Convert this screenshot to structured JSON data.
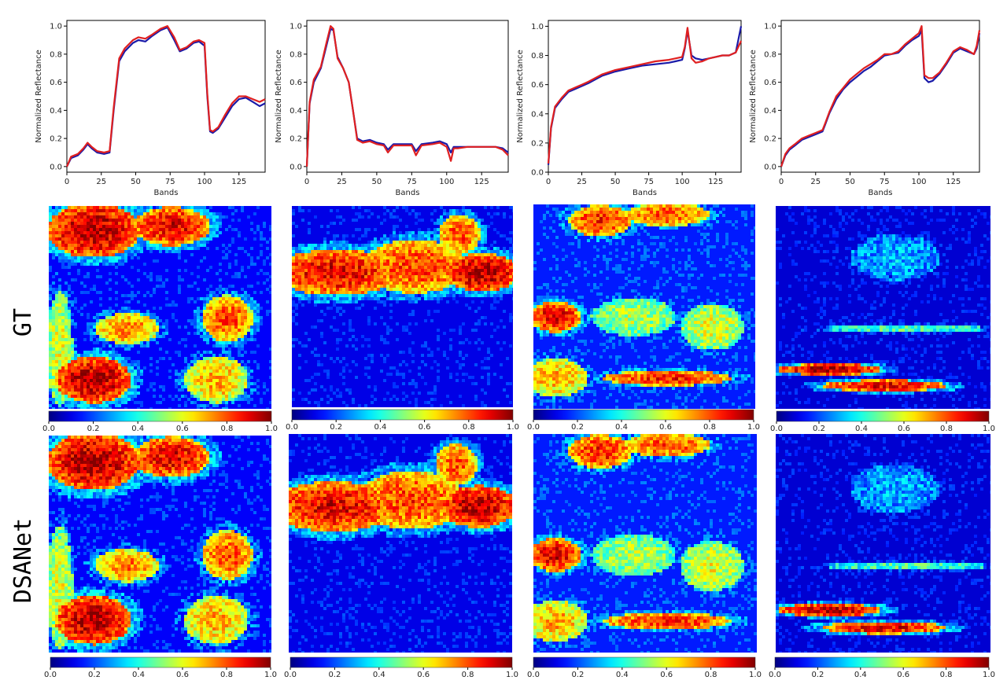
{
  "rows": [
    {
      "label": "GT"
    },
    {
      "label": "DSANet"
    }
  ],
  "colorbar": {
    "ticks": [
      "0.0",
      "0.2",
      "0.4",
      "0.6",
      "0.8",
      "1.0"
    ],
    "colormap": "jet",
    "range": [
      0,
      1
    ]
  },
  "colors": {
    "series_a": "#1a1aa8",
    "series_b": "#e02020"
  },
  "chart_data": [
    {
      "type": "line",
      "xlabel": "Bands",
      "ylabel": "Normalized Reflectance",
      "xlim": [
        0,
        144
      ],
      "ylim": [
        -0.04,
        1.04
      ],
      "xticks": [
        0,
        25,
        50,
        75,
        100,
        125
      ],
      "yticks": [
        0.0,
        0.2,
        0.4,
        0.6,
        0.8,
        1.0
      ],
      "series": [
        {
          "color": "#1a1aa8",
          "x": [
            0,
            3,
            8,
            12,
            15,
            18,
            22,
            27,
            31,
            34,
            38,
            42,
            48,
            52,
            57,
            62,
            68,
            73,
            78,
            82,
            87,
            92,
            96,
            100,
            102,
            104,
            106,
            110,
            115,
            120,
            125,
            130,
            135,
            140,
            144
          ],
          "y": [
            0.0,
            0.06,
            0.08,
            0.12,
            0.16,
            0.13,
            0.1,
            0.09,
            0.1,
            0.4,
            0.75,
            0.82,
            0.88,
            0.9,
            0.89,
            0.93,
            0.97,
            0.99,
            0.9,
            0.82,
            0.84,
            0.88,
            0.89,
            0.86,
            0.5,
            0.25,
            0.24,
            0.27,
            0.35,
            0.43,
            0.48,
            0.49,
            0.46,
            0.43,
            0.45
          ]
        },
        {
          "color": "#e02020",
          "x": [
            0,
            3,
            8,
            12,
            15,
            18,
            22,
            27,
            31,
            34,
            38,
            42,
            48,
            52,
            57,
            62,
            68,
            73,
            78,
            82,
            87,
            92,
            96,
            100,
            102,
            104,
            106,
            110,
            115,
            120,
            125,
            130,
            135,
            140,
            144
          ],
          "y": [
            0.0,
            0.07,
            0.09,
            0.13,
            0.17,
            0.14,
            0.11,
            0.1,
            0.11,
            0.42,
            0.77,
            0.84,
            0.9,
            0.92,
            0.91,
            0.94,
            0.98,
            1.0,
            0.92,
            0.83,
            0.85,
            0.89,
            0.9,
            0.88,
            0.52,
            0.26,
            0.25,
            0.28,
            0.37,
            0.45,
            0.5,
            0.5,
            0.48,
            0.46,
            0.48
          ]
        }
      ]
    },
    {
      "type": "line",
      "xlabel": "Bands",
      "ylabel": "Normalized Reflectance",
      "xlim": [
        0,
        144
      ],
      "ylim": [
        -0.04,
        1.04
      ],
      "xticks": [
        0,
        25,
        50,
        75,
        100,
        125
      ],
      "yticks": [
        0.0,
        0.2,
        0.4,
        0.6,
        0.8,
        1.0
      ],
      "series": [
        {
          "color": "#1a1aa8",
          "x": [
            0,
            2,
            5,
            10,
            14,
            17,
            19,
            22,
            26,
            30,
            33,
            36,
            40,
            45,
            50,
            55,
            58,
            62,
            70,
            75,
            78,
            82,
            90,
            95,
            100,
            103,
            105,
            108,
            115,
            125,
            135,
            140,
            144
          ],
          "y": [
            0.0,
            0.45,
            0.6,
            0.7,
            0.86,
            0.98,
            0.97,
            0.78,
            0.7,
            0.6,
            0.4,
            0.2,
            0.18,
            0.19,
            0.17,
            0.16,
            0.12,
            0.16,
            0.16,
            0.16,
            0.11,
            0.16,
            0.17,
            0.18,
            0.16,
            0.1,
            0.14,
            0.14,
            0.14,
            0.14,
            0.14,
            0.13,
            0.1
          ]
        },
        {
          "color": "#e02020",
          "x": [
            0,
            2,
            5,
            10,
            14,
            17,
            19,
            22,
            26,
            30,
            33,
            36,
            40,
            45,
            50,
            55,
            58,
            62,
            70,
            75,
            78,
            82,
            90,
            95,
            100,
            103,
            105,
            108,
            115,
            125,
            135,
            140,
            144
          ],
          "y": [
            0.0,
            0.46,
            0.62,
            0.71,
            0.88,
            1.0,
            0.98,
            0.77,
            0.7,
            0.6,
            0.4,
            0.19,
            0.17,
            0.18,
            0.16,
            0.15,
            0.1,
            0.15,
            0.15,
            0.15,
            0.08,
            0.15,
            0.16,
            0.17,
            0.14,
            0.04,
            0.13,
            0.13,
            0.14,
            0.14,
            0.14,
            0.12,
            0.08
          ]
        }
      ]
    },
    {
      "type": "line",
      "xlabel": "Bands",
      "ylabel": "Normalized Reflectance",
      "xlim": [
        0,
        144
      ],
      "ylim": [
        0,
        1.04
      ],
      "xticks": [
        0,
        25,
        50,
        75,
        100,
        125
      ],
      "yticks": [
        0.0,
        0.2,
        0.4,
        0.6,
        0.8,
        1.0
      ],
      "series": [
        {
          "color": "#1a1aa8",
          "x": [
            0,
            2,
            5,
            10,
            15,
            20,
            25,
            30,
            40,
            50,
            60,
            70,
            80,
            90,
            95,
            100,
            102,
            104,
            107,
            110,
            115,
            120,
            125,
            130,
            135,
            140,
            144
          ],
          "y": [
            0.05,
            0.3,
            0.44,
            0.5,
            0.55,
            0.57,
            0.59,
            0.61,
            0.66,
            0.69,
            0.71,
            0.73,
            0.74,
            0.75,
            0.76,
            0.77,
            0.85,
            0.97,
            0.8,
            0.78,
            0.77,
            0.78,
            0.79,
            0.8,
            0.8,
            0.82,
            1.0
          ]
        },
        {
          "color": "#e02020",
          "x": [
            0,
            2,
            5,
            10,
            15,
            20,
            25,
            30,
            40,
            50,
            60,
            70,
            80,
            90,
            95,
            100,
            102,
            104,
            107,
            110,
            115,
            120,
            125,
            130,
            135,
            140,
            144
          ],
          "y": [
            0.06,
            0.31,
            0.45,
            0.51,
            0.56,
            0.58,
            0.6,
            0.62,
            0.67,
            0.7,
            0.72,
            0.74,
            0.76,
            0.77,
            0.78,
            0.79,
            0.86,
            0.99,
            0.78,
            0.75,
            0.76,
            0.78,
            0.79,
            0.8,
            0.8,
            0.82,
            0.9
          ]
        }
      ]
    },
    {
      "type": "line",
      "xlabel": "Bands",
      "ylabel": "Normalized Reflectance",
      "xlim": [
        0,
        144
      ],
      "ylim": [
        -0.04,
        1.04
      ],
      "xticks": [
        0,
        25,
        50,
        75,
        100,
        125
      ],
      "yticks": [
        0.0,
        0.2,
        0.4,
        0.6,
        0.8,
        1.0
      ],
      "series": [
        {
          "color": "#1a1aa8",
          "x": [
            0,
            3,
            6,
            10,
            15,
            20,
            25,
            30,
            32,
            35,
            40,
            45,
            50,
            55,
            60,
            65,
            70,
            75,
            80,
            85,
            90,
            95,
            100,
            102,
            104,
            107,
            110,
            115,
            120,
            125,
            130,
            135,
            140,
            142,
            144
          ],
          "y": [
            0.0,
            0.08,
            0.12,
            0.15,
            0.19,
            0.21,
            0.23,
            0.25,
            0.3,
            0.38,
            0.48,
            0.55,
            0.6,
            0.64,
            0.68,
            0.71,
            0.75,
            0.79,
            0.8,
            0.81,
            0.86,
            0.9,
            0.93,
            0.97,
            0.63,
            0.6,
            0.61,
            0.66,
            0.73,
            0.81,
            0.84,
            0.82,
            0.8,
            0.84,
            0.95
          ]
        },
        {
          "color": "#e02020",
          "x": [
            0,
            3,
            6,
            10,
            15,
            20,
            25,
            30,
            32,
            35,
            40,
            45,
            50,
            55,
            60,
            65,
            70,
            75,
            80,
            85,
            90,
            95,
            100,
            102,
            104,
            107,
            110,
            115,
            120,
            125,
            130,
            135,
            140,
            142,
            144
          ],
          "y": [
            0.0,
            0.09,
            0.13,
            0.16,
            0.2,
            0.22,
            0.24,
            0.26,
            0.31,
            0.39,
            0.5,
            0.56,
            0.62,
            0.66,
            0.7,
            0.73,
            0.76,
            0.8,
            0.8,
            0.82,
            0.87,
            0.91,
            0.95,
            1.0,
            0.65,
            0.63,
            0.63,
            0.67,
            0.74,
            0.82,
            0.85,
            0.83,
            0.8,
            0.86,
            0.97
          ]
        }
      ]
    }
  ]
}
